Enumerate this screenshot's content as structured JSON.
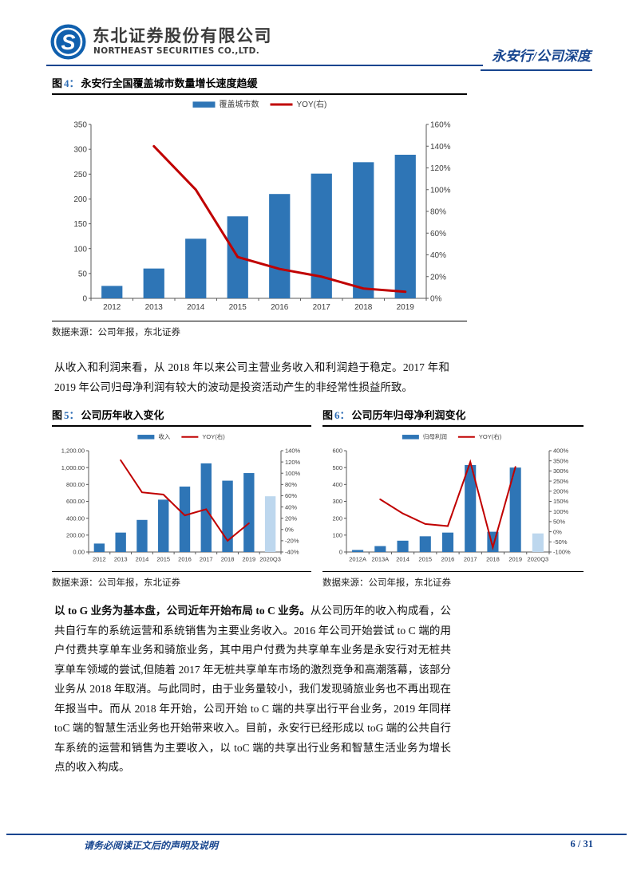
{
  "header": {
    "logo": {
      "company_cn": "东北证券股份有限公司",
      "company_en": "NORTHEAST SECURITIES CO.,LTD.",
      "icon": "northeast-securities-swirl-icon",
      "brand_color": "#1060ae"
    },
    "report_tag": "永安行/公司深度"
  },
  "figures": [
    {
      "label_cn": "图",
      "label_num": "4：",
      "title": "永安行全国覆盖城市数量增长速度趋缓",
      "source": "数据来源：公司年报，东北证券"
    },
    {
      "label_cn": "图",
      "label_num": "5：",
      "title": "公司历年收入变化",
      "source": "数据来源：公司年报，东北证券"
    },
    {
      "label_cn": "图",
      "label_num": "6：",
      "title": "公司历年归母净利润变化",
      "source": "数据来源：公司年报，东北证券"
    }
  ],
  "paragraphs": {
    "p1": "从收入和利润来看，从 2018 年以来公司主营业务收入和利润趋于稳定。2017 年和 2019 年公司归母净利润有较大的波动是投资活动产生的非经常性损益所致。",
    "p2_bold": "以 to G 业务为基本盘，公司近年开始布局 to C 业务。",
    "p2_rest": "从公司历年的收入构成看，公共自行车的系统运营和系统销售为主要业务收入。2016 年公司开始尝试 to C 端的用户付费共享单车业务和骑旅业务，其中用户付费为共享单车业务是永安行对无桩共享单车领域的尝试,但随着 2017 年无桩共享单车市场的激烈竞争和高潮落幕，该部分业务从 2018 年取消。与此同时，由于业务量较小，我们发现骑旅业务也不再出现在年报当中。而从 2018 年开始，公司开始 to C 端的共享出行平台业务，2019 年同样 toC 端的智慧生活业务也开始带来收入。目前，永安行已经形成以 toG 端的公共自行车系统的运营和销售为主要收入，以 toC 端的共享出行业务和智慧生活业务为增长点的收入构成。"
  },
  "footer": {
    "disclaimer": "请务必阅读正文后的声明及说明",
    "page_number": "6 / 31"
  },
  "colors": {
    "accent_blue": "#17458f",
    "bar_blue": "#2e75b6",
    "bar_light_blue": "#bdd7ee",
    "line_red": "#c00000",
    "figure_num_blue": "#2e6db5"
  },
  "chart_data": [
    {
      "type": "bar",
      "title": "永安行全国覆盖城市数量增长速度趋缓",
      "categories": [
        "2012",
        "2013",
        "2014",
        "2015",
        "2016",
        "2017",
        "2018",
        "2019"
      ],
      "series": [
        {
          "name": "覆盖城市数",
          "kind": "bar",
          "axis": "left",
          "color": "#2e75b6",
          "values": [
            25,
            60,
            120,
            165,
            210,
            251,
            274,
            289
          ]
        },
        {
          "name": "YOY(右)",
          "kind": "line",
          "axis": "right",
          "color": "#c00000",
          "values": [
            null,
            140,
            100,
            38,
            27,
            20,
            9,
            6
          ]
        }
      ],
      "left_axis": {
        "min": 0,
        "max": 350,
        "step": 50,
        "format": "int"
      },
      "right_axis": {
        "min": 0,
        "max": 160,
        "step": 20,
        "format": "pct"
      },
      "legend_position": "top",
      "grid": false
    },
    {
      "type": "bar",
      "title": "公司历年收入变化",
      "categories": [
        "2012",
        "2013",
        "2014",
        "2015",
        "2016",
        "2017",
        "2018",
        "2019",
        "2020Q3"
      ],
      "series": [
        {
          "name": "收入",
          "kind": "bar",
          "axis": "left",
          "color": "#2e75b6",
          "values": [
            100,
            230,
            380,
            620,
            775,
            1050,
            845,
            935,
            660
          ],
          "highlight": {
            "index": 8,
            "color": "#bdd7ee"
          }
        },
        {
          "name": "YOY(右)",
          "kind": "line",
          "axis": "right",
          "color": "#c00000",
          "values": [
            null,
            123,
            66,
            62,
            25,
            36,
            -20,
            11,
            null
          ]
        }
      ],
      "left_axis": {
        "min": 0,
        "max": 1200,
        "step": 200,
        "format": "dec2"
      },
      "right_axis": {
        "min": -40,
        "max": 140,
        "step": 20,
        "format": "pct"
      },
      "legend_position": "top",
      "grid": false
    },
    {
      "type": "bar",
      "title": "公司历年归母净利润变化",
      "categories": [
        "2012A",
        "2013A",
        "2014",
        "2015",
        "2016",
        "2017",
        "2018",
        "2019",
        "2020Q3"
      ],
      "series": [
        {
          "name": "归母利润",
          "kind": "bar",
          "axis": "left",
          "color": "#2e75b6",
          "values": [
            12,
            35,
            67,
            93,
            115,
            515,
            120,
            500,
            110
          ],
          "highlight": {
            "index": 8,
            "color": "#bdd7ee"
          }
        },
        {
          "name": "YOY(右)",
          "kind": "line",
          "axis": "right",
          "color": "#c00000",
          "values": [
            null,
            160,
            90,
            38,
            28,
            345,
            -77,
            320,
            null
          ]
        }
      ],
      "left_axis": {
        "min": 0,
        "max": 600,
        "step": 100,
        "format": "int"
      },
      "right_axis": {
        "min": -100,
        "max": 400,
        "step": 50,
        "format": "pct"
      },
      "legend_position": "top",
      "grid": false
    }
  ]
}
